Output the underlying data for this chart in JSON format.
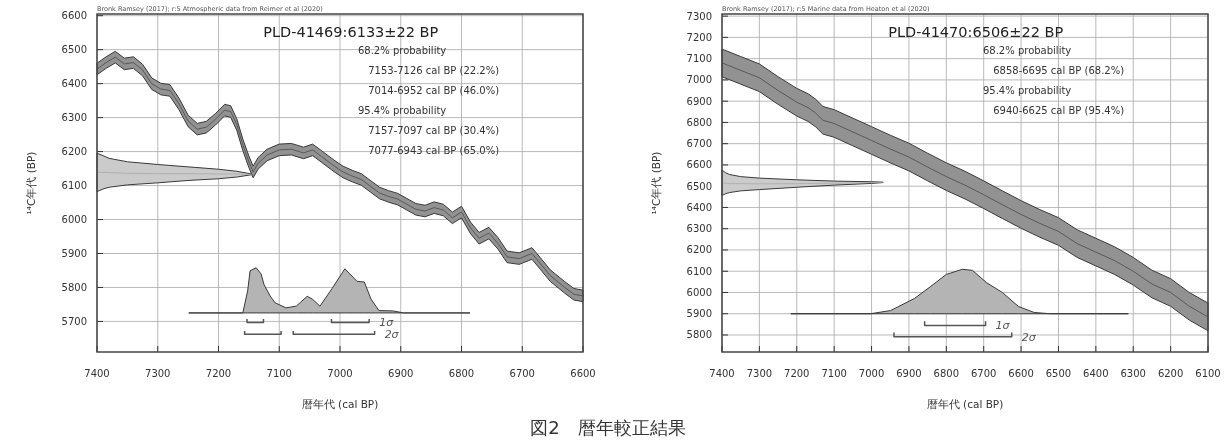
{
  "chart_data": [
    {
      "type": "area",
      "title": "PLD-41469:6133±22 BP",
      "xlabel": "暦年代 (cal BP)",
      "ylabel": "¹⁴C年代 (BP)",
      "annotations": [
        "Bronk Ramsey (2017); r:5 Atmospheric data from Reimer et al (2020)",
        "68.2% probability",
        "7153-7126 cal BP (22.2%)",
        "7014-6952 cal BP (46.0%)",
        "95.4% probability",
        "7157-7097 cal BP (30.4%)",
        "7077-6943 cal BP (65.0%)"
      ],
      "xlim": [
        7400,
        6600
      ],
      "ylim": [
        5610,
        6605
      ],
      "xticks": [
        7400,
        7300,
        7200,
        7100,
        7000,
        6900,
        6800,
        6700,
        6600
      ],
      "yticks": [
        5700,
        5800,
        5900,
        6000,
        6100,
        6200,
        6300,
        6400,
        6500,
        6600
      ],
      "grid": true,
      "series": [
        {
          "type": "line",
          "color": "#4a4a4a",
          "x": [
            7400,
            7385,
            7370,
            7355,
            7340,
            7325,
            7310,
            7295,
            7280,
            7265,
            7250,
            7235,
            7220,
            7205,
            7190,
            7180,
            7170,
            7160,
            7150,
            7143,
            7135,
            7120,
            7100,
            7080,
            7060,
            7045,
            7030,
            7010,
            6995,
            6980,
            6965,
            6950,
            6935,
            6920,
            6905,
            6890,
            6875,
            6860,
            6845,
            6830,
            6815,
            6800,
            6785,
            6771,
            6755,
            6740,
            6725,
            6705,
            6684,
            6670,
            6654,
            6630,
            6615,
            6600
          ],
          "values": [
            6443,
            6462,
            6478,
            6458,
            6462,
            6440,
            6400,
            6384,
            6380,
            6340,
            6290,
            6266,
            6272,
            6295,
            6322,
            6318,
            6280,
            6220,
            6170,
            6140,
            6165,
            6190,
            6205,
            6207,
            6196,
            6205,
            6185,
            6158,
            6140,
            6128,
            6118,
            6098,
            6078,
            6068,
            6060,
            6045,
            6030,
            6025,
            6035,
            6028,
            6005,
            6022,
            5975,
            5945,
            5960,
            5930,
            5890,
            5885,
            5900,
            5870,
            5835,
            5800,
            5780,
            5775
          ],
          "lower": [
            6426,
            6445,
            6461,
            6441,
            6445,
            6423,
            6383,
            6367,
            6363,
            6323,
            6273,
            6249,
            6255,
            6278,
            6305,
            6301,
            6263,
            6203,
            6153,
            6123,
            6148,
            6173,
            6188,
            6190,
            6179,
            6188,
            6168,
            6141,
            6123,
            6111,
            6101,
            6081,
            6061,
            6051,
            6043,
            6028,
            6013,
            6008,
            6018,
            6011,
            5988,
            6005,
            5958,
            5928,
            5943,
            5913,
            5873,
            5868,
            5883,
            5853,
            5818,
            5783,
            5763,
            5758
          ],
          "upper": [
            6460,
            6479,
            6495,
            6475,
            6479,
            6457,
            6417,
            6401,
            6397,
            6357,
            6307,
            6283,
            6289,
            6312,
            6339,
            6335,
            6297,
            6237,
            6187,
            6157,
            6182,
            6207,
            6222,
            6224,
            6213,
            6222,
            6202,
            6175,
            6157,
            6145,
            6135,
            6115,
            6095,
            6085,
            6077,
            6062,
            6047,
            6042,
            6052,
            6045,
            6022,
            6039,
            5992,
            5962,
            5977,
            5947,
            5907,
            5902,
            5917,
            5887,
            5852,
            5817,
            5797,
            5792
          ]
        },
        {
          "type": "line",
          "color": "#a8a8a8",
          "x": [
            7400,
            7390,
            7380,
            7350,
            7300,
            7250,
            7200,
            7170,
            7145
          ],
          "values": [
            6139,
            6139,
            6138,
            6136,
            6135,
            6135,
            6134,
            6134,
            6133
          ],
          "lower": [
            6082,
            6090,
            6095,
            6102,
            6108,
            6115,
            6120,
            6125,
            6132
          ],
          "upper": [
            6195,
            6188,
            6180,
            6170,
            6162,
            6155,
            6148,
            6142,
            6134
          ]
        },
        {
          "type": "area",
          "color": "#b4b4b4",
          "x": [
            7249,
            7160,
            7152,
            7148,
            7138,
            7130,
            7125,
            7115,
            7107,
            7089,
            7072,
            7054,
            7045,
            7033,
            7013,
            6992,
            6972,
            6960,
            6949,
            6936,
            6913,
            6895,
            6786
          ],
          "values": [
            5725,
            5725,
            5790,
            5849,
            5858,
            5840,
            5808,
            5775,
            5755,
            5740,
            5745,
            5774,
            5765,
            5745,
            5797,
            5855,
            5818,
            5816,
            5766,
            5732,
            5731,
            5725,
            5725
          ]
        },
        {
          "type": "line",
          "name": "1σ",
          "color": "#555555",
          "x": [
            7153,
            7153,
            7126,
            7126,
            7070,
            7014,
            7014,
            6952,
            6952
          ],
          "values": [
            5707,
            5697,
            5697,
            5707,
            null,
            5707,
            5697,
            5697,
            5707
          ]
        },
        {
          "type": "line",
          "name": "2σ",
          "color": "#555555",
          "x": [
            7157,
            7157,
            7097,
            7097,
            7087,
            7077,
            7077,
            6943,
            6943
          ],
          "values": [
            5672,
            5662,
            5662,
            5672,
            null,
            5672,
            5662,
            5662,
            5672
          ]
        }
      ]
    },
    {
      "type": "area",
      "title": "PLD-41470:6506±22 BP",
      "xlabel": "暦年代 (cal BP)",
      "ylabel": "¹⁴C年代 (BP)",
      "annotations": [
        "Bronk Ramsey (2017); r:5 Marine data from Heaton et al (2020)",
        "68.2% probability",
        "6858-6695 cal BP (68.2%)",
        "95.4% probability",
        "6940-6625 cal BP (95.4%)",
        "図2　暦年較正結果"
      ],
      "xlim": [
        7400,
        6100
      ],
      "ylim": [
        5720,
        7310
      ],
      "xticks": [
        7400,
        7300,
        7200,
        7100,
        7000,
        6900,
        6800,
        6700,
        6600,
        6500,
        6400,
        6300,
        6200,
        6100
      ],
      "yticks": [
        5800,
        5900,
        6000,
        6100,
        6200,
        6300,
        6400,
        6500,
        6600,
        6700,
        6800,
        6900,
        7000,
        7100,
        7200,
        7300
      ],
      "grid": true,
      "series": [
        {
          "type": "line",
          "color": "#4a4a4a",
          "x": [
            7400,
            7350,
            7300,
            7250,
            7200,
            7170,
            7150,
            7130,
            7100,
            7050,
            7000,
            6950,
            6900,
            6850,
            6800,
            6750,
            6700,
            6650,
            6600,
            6550,
            6500,
            6450,
            6400,
            6350,
            6300,
            6250,
            6200,
            6150,
            6100
          ],
          "values": [
            7080,
            7045,
            7010,
            6950,
            6895,
            6870,
            6845,
            6810,
            6795,
            6755,
            6715,
            6675,
            6637,
            6590,
            6545,
            6505,
            6460,
            6413,
            6367,
            6325,
            6287,
            6230,
            6190,
            6150,
            6100,
            6040,
            6000,
            5935,
            5885
          ],
          "lower": [
            7015,
            6980,
            6945,
            6885,
            6830,
            6805,
            6780,
            6745,
            6730,
            6690,
            6650,
            6610,
            6572,
            6525,
            6480,
            6440,
            6395,
            6348,
            6302,
            6260,
            6222,
            6165,
            6125,
            6085,
            6035,
            5975,
            5935,
            5870,
            5820
          ],
          "upper": [
            7145,
            7110,
            7075,
            7015,
            6960,
            6935,
            6910,
            6875,
            6860,
            6820,
            6780,
            6740,
            6702,
            6655,
            6610,
            6570,
            6525,
            6478,
            6432,
            6390,
            6352,
            6295,
            6255,
            6215,
            6165,
            6105,
            6065,
            6000,
            5950
          ]
        },
        {
          "type": "line",
          "color": "#a8a8a8",
          "x": [
            7400,
            7390,
            7380,
            7350,
            7300,
            7200,
            7100,
            7000,
            6969
          ],
          "values": [
            6516,
            6514,
            6512,
            6512,
            6511,
            6512,
            6514,
            6517,
            6518
          ],
          "lower": [
            6456,
            6465,
            6470,
            6478,
            6484,
            6495,
            6505,
            6513,
            6517
          ],
          "upper": [
            6575,
            6563,
            6555,
            6545,
            6538,
            6530,
            6524,
            6521,
            6519
          ]
        },
        {
          "type": "area",
          "color": "#b4b4b4",
          "x": [
            7216,
            7003,
            6949,
            6885,
            6842,
            6800,
            6757,
            6730,
            6693,
            6650,
            6607,
            6565,
            6522,
            6313
          ],
          "values": [
            5900,
            5900,
            5915,
            5972,
            6028,
            6085,
            6109,
            6104,
            6047,
            6000,
            5934,
            5906,
            5900,
            5900
          ]
        },
        {
          "type": "line",
          "name": "1σ",
          "color": "#555555",
          "x": [
            6858,
            6858,
            6695,
            6695
          ],
          "values": [
            5865,
            5845,
            5845,
            5865
          ]
        },
        {
          "type": "line",
          "name": "2σ",
          "color": "#555555",
          "x": [
            6940,
            6940,
            6625,
            6625
          ],
          "values": [
            5812,
            5792,
            5792,
            5812
          ]
        }
      ]
    }
  ]
}
